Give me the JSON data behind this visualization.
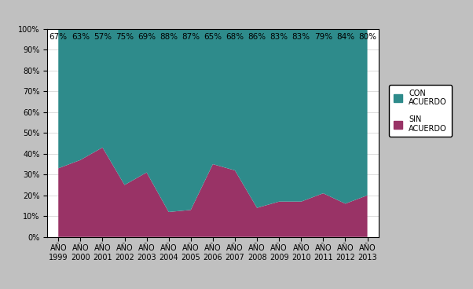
{
  "years": [
    "AÑO\n1999",
    "AÑO\n2000",
    "AÑO\n2001",
    "AÑO\n2002",
    "AÑO\n2003",
    "AÑO\n2004",
    "AÑO\n2005",
    "AÑO\n2006",
    "AÑO\n2007",
    "AÑO\n2008",
    "AÑO\n2009",
    "AÑO\n2010",
    "AÑO\n2011",
    "AÑO\n2012",
    "AÑO\n2013"
  ],
  "con_acuerdo": [
    67,
    63,
    57,
    75,
    69,
    88,
    87,
    65,
    68,
    86,
    83,
    83,
    79,
    84,
    80
  ],
  "sin_acuerdo": [
    33,
    37,
    43,
    25,
    31,
    12,
    13,
    35,
    32,
    14,
    17,
    17,
    21,
    16,
    20
  ],
  "color_con": "#2e8b8b",
  "color_sin": "#993366",
  "background_outer": "#c0c0c0",
  "background_plot": "#ffffff",
  "ylim": [
    0,
    100
  ],
  "yticks": [
    0,
    10,
    20,
    30,
    40,
    50,
    60,
    70,
    80,
    90,
    100
  ],
  "ytick_labels": [
    "0%",
    "10%",
    "20%",
    "30%",
    "40%",
    "50%",
    "60%",
    "70%",
    "80%",
    "90%",
    "100%"
  ],
  "label_con": "CON\nACUERDO",
  "label_sin": "SIN\nACUERDO",
  "fontsize_ticks": 7,
  "fontsize_labels": 7,
  "fontsize_annot": 7.5
}
